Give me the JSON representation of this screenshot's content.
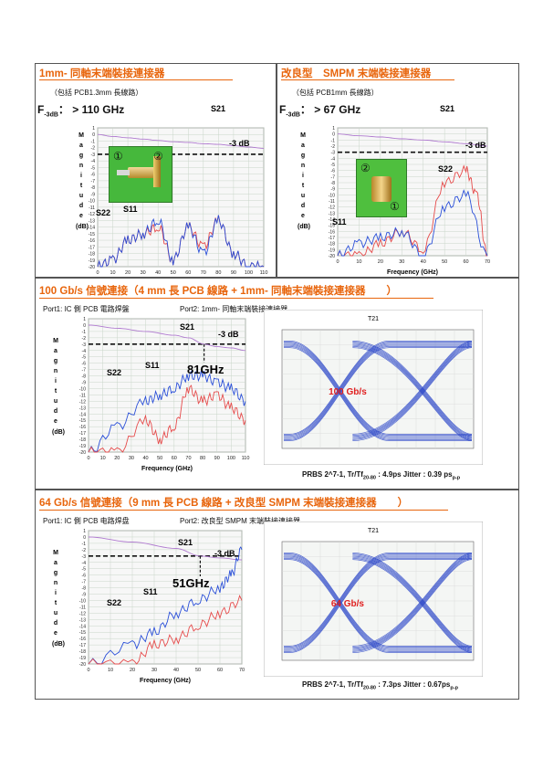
{
  "panels": [
    {
      "title": "1mm- 同軸末端裝接連接器",
      "subtitle": "（包括 PCB1.3mm 長線路）",
      "f3db_prefix": "F",
      "f3db_sub": "-3dB",
      "f3db_value": "： > 110 GHz",
      "s21": "S21",
      "minus3db": "-3 dB",
      "s22": "S22",
      "s11": "S11",
      "ylabel": [
        "M",
        "a",
        "g",
        "n",
        "i",
        "t",
        "u",
        "d",
        "e"
      ],
      "yunit": "(dB)",
      "xlabel": "Frequency (GHz)",
      "yticks": [
        "1",
        "0",
        "-1",
        "-2",
        "-3",
        "-4",
        "-5",
        "-6",
        "-7",
        "-8",
        "-9",
        "-10",
        "-11",
        "-12",
        "-13",
        "-14",
        "-15",
        "-16",
        "-17",
        "-18",
        "-19",
        "-20"
      ],
      "xticks": [
        "0",
        "10",
        "20",
        "30",
        "40",
        "50",
        "60",
        "70",
        "80",
        "90",
        "100",
        "110"
      ],
      "port1": "①",
      "port2": "②"
    },
    {
      "title": "改良型　SMPM 末端裝接連接器",
      "subtitle": "（包括 PCB1mm 長線路）",
      "f3db_prefix": "F",
      "f3db_sub": "-3dB",
      "f3db_value": "： > 67 GHz",
      "s21": "S21",
      "minus3db": "-3 dB",
      "s22": "S22",
      "s11": "S11",
      "yunit": "(dB)",
      "xlabel": "Frequency (GHz)",
      "xticks": [
        "0",
        "10",
        "20",
        "30",
        "40",
        "50",
        "60",
        "70"
      ],
      "port1": "①",
      "port2": "②"
    },
    {
      "title": "100 Gb/s  信號連接（4 mm 長  PCB  線路 + 1mm- 同軸末端裝接連接器　　）",
      "port1": "Port1: IC 側 PCB 電路焊盤",
      "port2": "Port2:  1mm- 同軸末端裝接連接器",
      "s21": "S21",
      "minus3db": "-3 dB",
      "s22": "S22",
      "s11": "S11",
      "freq_mark": "81GHz",
      "yunit": "(dB)",
      "xlabel": "Frequency (GHz)",
      "xticks": [
        "0",
        "10",
        "20",
        "30",
        "40",
        "50",
        "60",
        "70",
        "80",
        "90",
        "100",
        "110"
      ],
      "eye_title": "T21",
      "eye_label": "100 Gb/s",
      "caption_a": "PRBS 2^7-1,   Tr/Tf",
      "caption_sub": "20-80",
      "caption_b": " : 4.9ps    Jitter : 0.39 ps",
      "caption_pp": "p-p"
    },
    {
      "title": "64 Gb/s 信號連接（9 mm 長 PCB  線路  +  改良型 SMPM 末端裝接連接器　　）",
      "port1": "Port1: IC 側 PCB  电路焊盘",
      "port2": "Port2:  改良型 SMPM 末端裝接連接器",
      "s21": "S21",
      "minus3db": "-3 dB",
      "s22": "S22",
      "s11": "S11",
      "freq_mark": "51GHz",
      "yunit": "(dB)",
      "xlabel": "Frequency (GHz)",
      "xticks": [
        "0",
        "10",
        "20",
        "30",
        "40",
        "50",
        "60",
        "70"
      ],
      "eye_title": "T21",
      "eye_label": "64 Gb/s",
      "caption_a": "PRBS 2^7-1,   Tr/Tf",
      "caption_sub": "20-80",
      "caption_b": " : 7.3ps    Jitter : 0.67ps",
      "caption_pp": "p-p"
    }
  ],
  "colors": {
    "title": "#e8650c",
    "s21": "#b07ad0",
    "s11": "#2a4fd8",
    "s22": "#e64b4b",
    "eye": "#2a46c8",
    "eye_text": "#e02020"
  },
  "chart_data": [
    {
      "type": "line",
      "title": "1mm- 同軸末端裝接連接器",
      "xlabel": "Frequency (GHz)",
      "ylabel": "Magnitude (dB)",
      "xlim": [
        0,
        110
      ],
      "ylim": [
        -20,
        1
      ],
      "grid": true,
      "series": [
        {
          "name": "S21",
          "x": [
            0,
            10,
            20,
            30,
            40,
            50,
            60,
            70,
            80,
            90,
            100,
            110
          ],
          "y": [
            0,
            -0.3,
            -0.5,
            -0.7,
            -0.9,
            -1.1,
            -1.2,
            -1.4,
            -1.5,
            -1.7,
            -1.9,
            -2.1
          ]
        },
        {
          "name": "S22",
          "x": [
            0,
            10,
            20,
            30,
            40,
            50,
            60,
            70,
            80,
            90,
            100,
            110
          ],
          "y": [
            -20,
            -19,
            -16,
            -15,
            -14,
            -19,
            -14,
            -17,
            -13,
            -18,
            -20,
            -20
          ]
        },
        {
          "name": "S11",
          "x": [
            0,
            10,
            20,
            30,
            40,
            50,
            60,
            70,
            80,
            90,
            100,
            110
          ],
          "y": [
            -20,
            -19,
            -16,
            -15,
            -13,
            -19,
            -14,
            -18,
            -13,
            -18,
            -20,
            -20
          ]
        }
      ],
      "annotations": [
        "-3 dB"
      ]
    },
    {
      "type": "line",
      "title": "改良型　SMPM 末端裝接連接器",
      "xlabel": "Frequency (GHz)",
      "ylabel": "Magnitude (dB)",
      "xlim": [
        0,
        70
      ],
      "ylim": [
        -20,
        1
      ],
      "grid": true,
      "series": [
        {
          "name": "S21",
          "x": [
            0,
            10,
            20,
            30,
            40,
            50,
            60,
            70
          ],
          "y": [
            0,
            -0.3,
            -0.5,
            -0.8,
            -1.0,
            -1.3,
            -1.6,
            -2.0
          ]
        },
        {
          "name": "S22",
          "x": [
            0,
            10,
            20,
            30,
            40,
            50,
            60,
            65,
            70
          ],
          "y": [
            -20,
            -20,
            -18,
            -16,
            -19,
            -8,
            -6,
            -10,
            -20
          ]
        },
        {
          "name": "S11",
          "x": [
            0,
            10,
            20,
            30,
            40,
            50,
            60,
            70
          ],
          "y": [
            -20,
            -18,
            -17,
            -16,
            -20,
            -12,
            -10,
            -20
          ]
        }
      ],
      "annotations": [
        "-3 dB"
      ]
    },
    {
      "type": "line",
      "title": "100 Gb/s  信號連接",
      "xlabel": "Frequency (GHz)",
      "ylabel": "Magnitude (dB)",
      "xlim": [
        0,
        110
      ],
      "ylim": [
        -20,
        1
      ],
      "grid": true,
      "series": [
        {
          "name": "S21",
          "x": [
            0,
            20,
            40,
            60,
            70,
            81,
            90,
            100,
            110
          ],
          "y": [
            0,
            -0.5,
            -1.0,
            -1.6,
            -2.0,
            -3.0,
            -3.4,
            -3.6,
            -4.0
          ]
        },
        {
          "name": "S11",
          "x": [
            0,
            20,
            40,
            50,
            60,
            70,
            80,
            90,
            100,
            110
          ],
          "y": [
            -20,
            -16,
            -12,
            -11,
            -10,
            -8,
            -8,
            -9,
            -10,
            -12
          ]
        },
        {
          "name": "S22",
          "x": [
            0,
            20,
            40,
            50,
            60,
            70,
            80,
            90,
            100,
            110
          ],
          "y": [
            -20,
            -20,
            -15,
            -18,
            -16,
            -10,
            -12,
            -11,
            -13,
            -15
          ]
        }
      ],
      "annotations": [
        "-3 dB",
        "81GHz"
      ]
    },
    {
      "type": "line",
      "title": "64 Gb/s 信號連接",
      "xlabel": "Frequency (GHz)",
      "ylabel": "Magnitude (dB)",
      "xlim": [
        0,
        70
      ],
      "ylim": [
        -20,
        1
      ],
      "grid": true,
      "series": [
        {
          "name": "S21",
          "x": [
            0,
            20,
            40,
            51,
            60,
            70
          ],
          "y": [
            0,
            -0.8,
            -1.8,
            -3.0,
            -3.3,
            -3.6
          ]
        },
        {
          "name": "S11",
          "x": [
            0,
            20,
            30,
            40,
            50,
            60,
            65,
            70
          ],
          "y": [
            -20,
            -17,
            -15,
            -12,
            -10,
            -8,
            -6,
            -2
          ]
        },
        {
          "name": "S22",
          "x": [
            0,
            20,
            30,
            40,
            50,
            60,
            70
          ],
          "y": [
            -20,
            -20,
            -17,
            -16,
            -14,
            -12,
            -10
          ]
        }
      ],
      "annotations": [
        "-3 dB",
        "51GHz"
      ]
    }
  ]
}
